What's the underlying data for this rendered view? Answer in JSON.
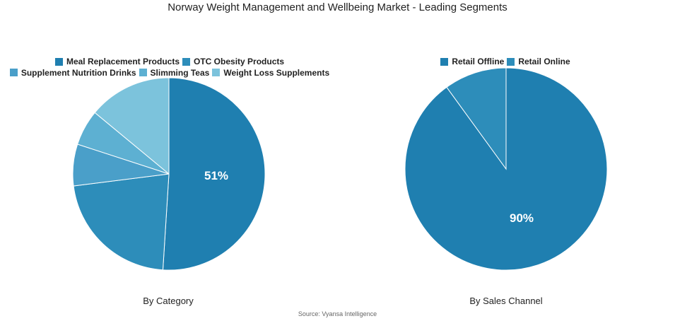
{
  "title": "Norway Weight Management and Wellbeing Market - Leading Segments",
  "source": "Source: Vyansa Intelligence",
  "chart_data": [
    {
      "type": "pie",
      "subtitle": "By Category",
      "legend_position": "top",
      "categories": [
        "Meal Replacement Products",
        "OTC Obesity Products",
        "Supplement Nutrition Drinks",
        "Slimming Teas",
        "Weight Loss Supplements"
      ],
      "values": [
        51,
        22,
        7,
        6,
        14
      ],
      "colors": [
        "#1f7fb0",
        "#2d8dba",
        "#4a9fc9",
        "#5db0d2",
        "#7cc3dc"
      ],
      "data_labels": [
        "51%",
        "",
        "",
        "",
        ""
      ]
    },
    {
      "type": "pie",
      "subtitle": "By Sales Channel",
      "legend_position": "top",
      "categories": [
        "Retail Offline",
        "Retail Online"
      ],
      "values": [
        90,
        10
      ],
      "colors": [
        "#1f7fb0",
        "#2d8dba"
      ],
      "data_labels": [
        "90%",
        ""
      ]
    }
  ]
}
